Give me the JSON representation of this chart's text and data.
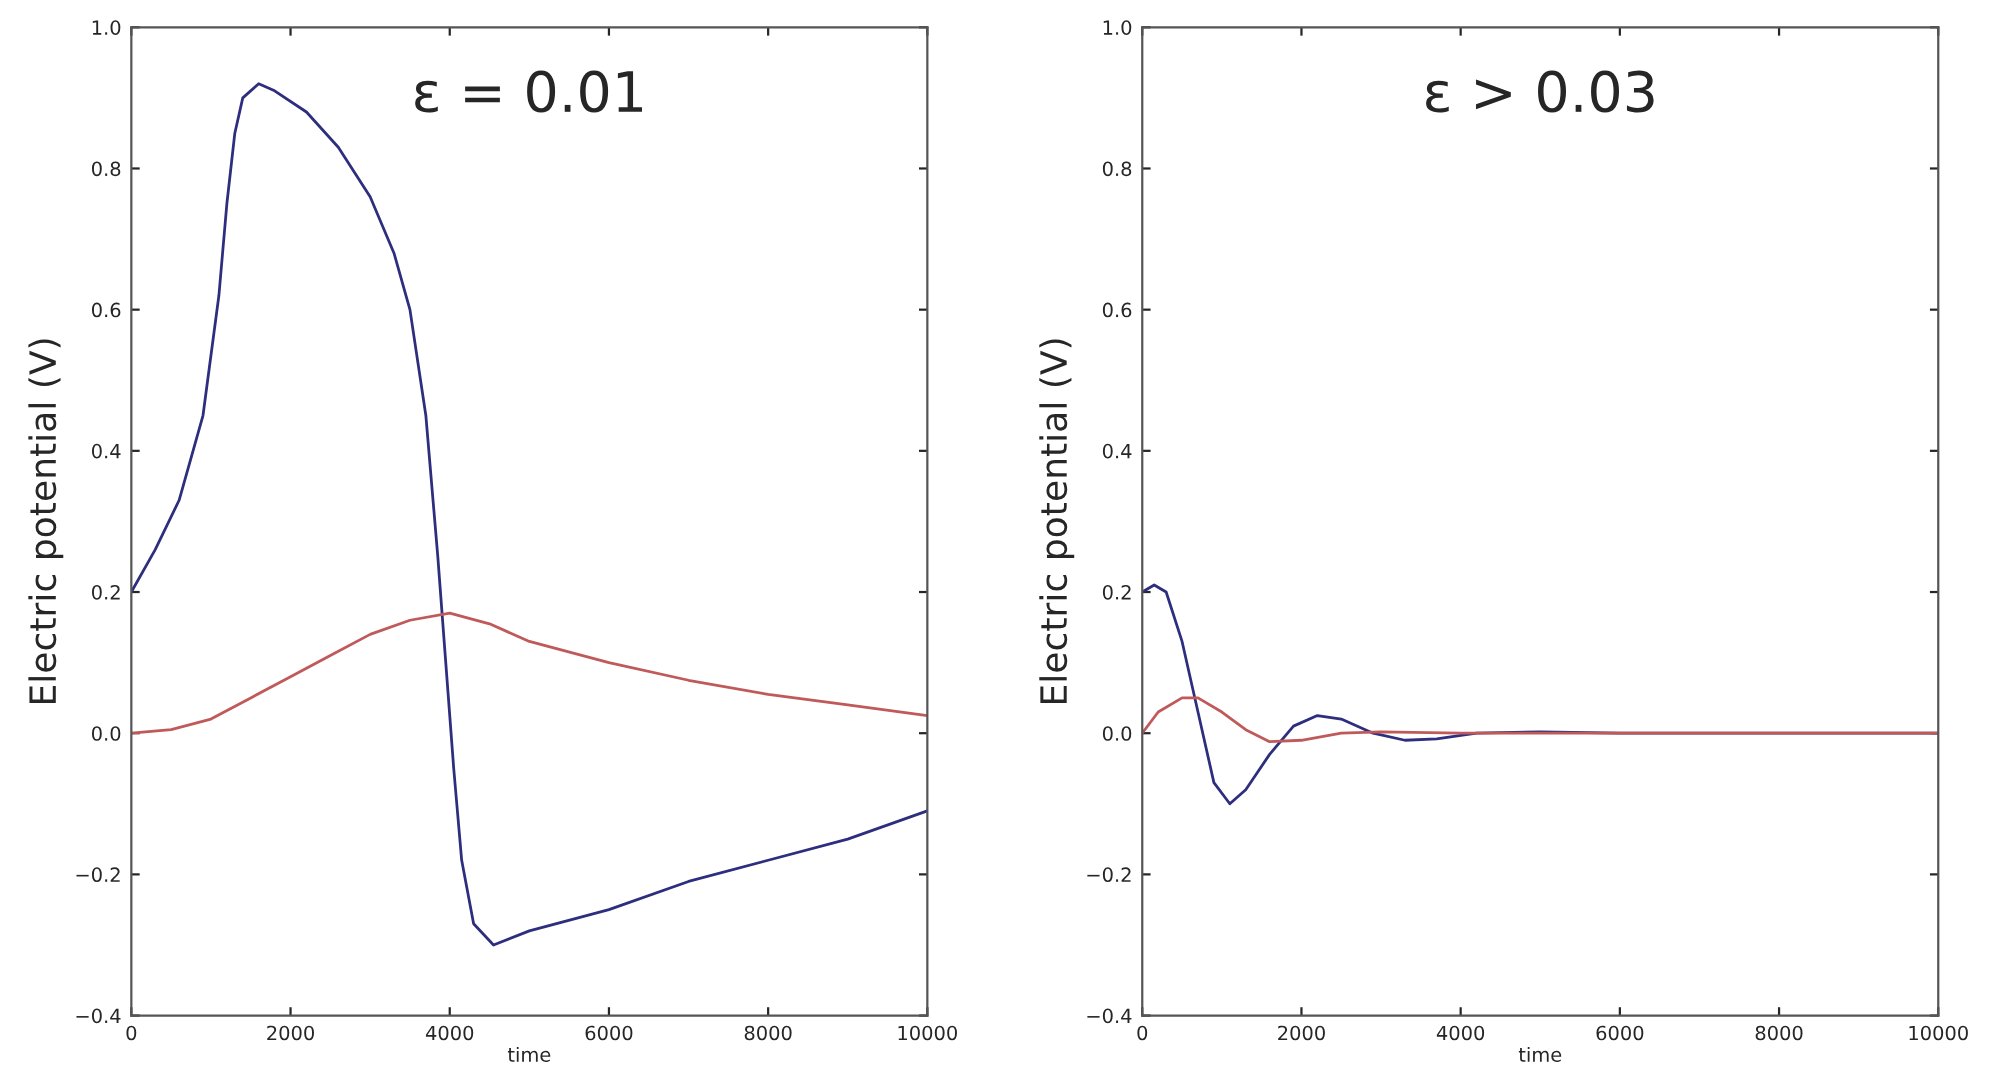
{
  "chart_data": [
    {
      "type": "line",
      "xlabel": "time",
      "ylabel": "Electric potential (V)",
      "annotations": [
        "ε = 0.01"
      ],
      "xlim": [
        0,
        10000
      ],
      "ylim": [
        -0.4,
        1.0
      ],
      "xticks": [
        0,
        2000,
        4000,
        6000,
        8000,
        10000
      ],
      "yticks": [
        {
          "value": -0.4,
          "label": "−0.4"
        },
        {
          "value": -0.2,
          "label": "−0.2"
        },
        {
          "value": 0.0,
          "label": "0.0"
        },
        {
          "value": 0.2,
          "label": "0.2"
        },
        {
          "value": 0.4,
          "label": "0.4"
        },
        {
          "value": 0.6,
          "label": "0.6"
        },
        {
          "value": 0.8,
          "label": "0.8"
        },
        {
          "value": 1.0,
          "label": "1.0"
        }
      ],
      "grid": false,
      "marker": "none",
      "line_style": "solid",
      "series": [
        {
          "color": "#2e2e7e",
          "x": [
            0,
            300,
            600,
            900,
            1100,
            1200,
            1300,
            1400,
            1600,
            1800,
            2200,
            2600,
            3000,
            3300,
            3500,
            3700,
            3850,
            3950,
            4050,
            4150,
            4300,
            4550,
            5000,
            6000,
            7000,
            8000,
            9000,
            10000
          ],
          "values": [
            0.2,
            0.26,
            0.33,
            0.45,
            0.62,
            0.75,
            0.85,
            0.9,
            0.92,
            0.91,
            0.88,
            0.83,
            0.76,
            0.68,
            0.6,
            0.45,
            0.25,
            0.1,
            -0.05,
            -0.18,
            -0.27,
            -0.3,
            -0.28,
            -0.25,
            -0.21,
            -0.18,
            -0.15,
            -0.11
          ]
        },
        {
          "color": "#c05a5a",
          "x": [
            0,
            500,
            1000,
            1500,
            2000,
            2500,
            3000,
            3500,
            4000,
            4500,
            5000,
            6000,
            7000,
            8000,
            9000,
            10000
          ],
          "values": [
            0.0,
            0.005,
            0.02,
            0.05,
            0.08,
            0.11,
            0.14,
            0.16,
            0.17,
            0.155,
            0.13,
            0.1,
            0.075,
            0.055,
            0.04,
            0.025
          ]
        }
      ]
    },
    {
      "type": "line",
      "xlabel": "time",
      "ylabel": "Electric potential (V)",
      "annotations": [
        "ε > 0.03"
      ],
      "xlim": [
        0,
        10000
      ],
      "ylim": [
        -0.4,
        1.0
      ],
      "xticks": [
        0,
        2000,
        4000,
        6000,
        8000,
        10000
      ],
      "yticks": [
        {
          "value": -0.4,
          "label": "−0.4"
        },
        {
          "value": -0.2,
          "label": "−0.2"
        },
        {
          "value": 0.0,
          "label": "0.0"
        },
        {
          "value": 0.2,
          "label": "0.2"
        },
        {
          "value": 0.4,
          "label": "0.4"
        },
        {
          "value": 0.6,
          "label": "0.6"
        },
        {
          "value": 0.8,
          "label": "0.8"
        },
        {
          "value": 1.0,
          "label": "1.0"
        }
      ],
      "grid": false,
      "marker": "none",
      "line_style": "solid",
      "series": [
        {
          "color": "#2e2e7e",
          "x": [
            0,
            150,
            300,
            500,
            700,
            900,
            1100,
            1300,
            1600,
            1900,
            2200,
            2500,
            2900,
            3300,
            3700,
            4200,
            5000,
            6000,
            10000
          ],
          "values": [
            0.2,
            0.21,
            0.2,
            0.13,
            0.03,
            -0.07,
            -0.1,
            -0.08,
            -0.03,
            0.01,
            0.025,
            0.02,
            0.0,
            -0.01,
            -0.008,
            0.0,
            0.002,
            0.0,
            0.0
          ]
        },
        {
          "color": "#c05a5a",
          "x": [
            0,
            200,
            500,
            700,
            1000,
            1300,
            1600,
            2000,
            2500,
            3000,
            4000,
            10000
          ],
          "values": [
            0.0,
            0.03,
            0.05,
            0.05,
            0.03,
            0.005,
            -0.012,
            -0.01,
            0.0,
            0.002,
            0.0,
            0.0
          ]
        }
      ]
    }
  ]
}
